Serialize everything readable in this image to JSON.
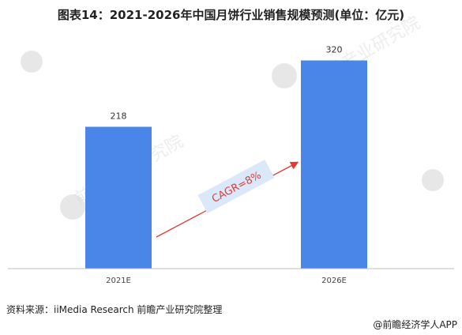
{
  "title": "图表14：2021-2026年中国月饼行业销售规模预测(单位：亿元)",
  "chart_data": {
    "type": "bar",
    "categories": [
      "2021E",
      "2026E"
    ],
    "values": [
      218,
      320
    ],
    "unit": "亿元",
    "ylim": [
      0,
      340
    ],
    "grid": false,
    "annotation": "CAGR=8%",
    "bar_color": "#4a86e8"
  },
  "watermark_text": "前瞻产业研究院",
  "source": "资料来源：iiMedia Research 前瞻产业研究院整理",
  "credit": "@前瞻经济学人APP"
}
